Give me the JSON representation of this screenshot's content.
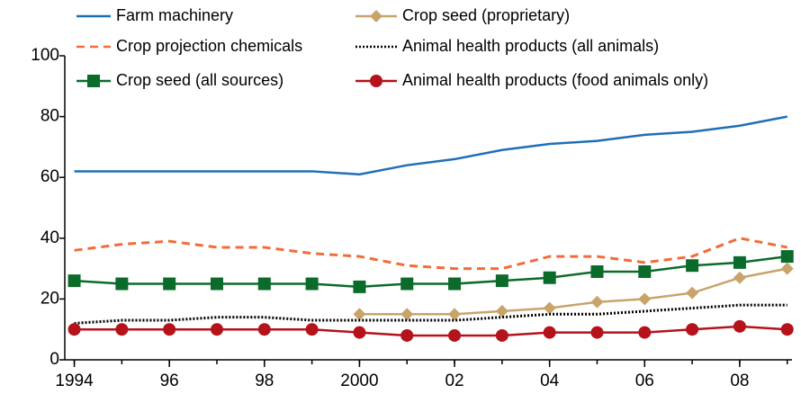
{
  "chart_data": {
    "type": "line",
    "x": [
      1994,
      1995,
      1996,
      1997,
      1998,
      1999,
      2000,
      2001,
      2002,
      2003,
      2004,
      2005,
      2006,
      2007,
      2008,
      2009
    ],
    "xlim": [
      1993.8,
      2009.1
    ],
    "xticks": [
      1994,
      {
        "value": 1996,
        "label": "96"
      },
      {
        "value": 1998,
        "label": "98"
      },
      2000,
      {
        "value": 2002,
        "label": "02"
      },
      {
        "value": 2004,
        "label": "04"
      },
      {
        "value": 2006,
        "label": "06"
      },
      {
        "value": 2008,
        "label": "08"
      }
    ],
    "ylim": [
      0,
      100
    ],
    "yticks": [
      0,
      20,
      40,
      60,
      80,
      100
    ],
    "grid": false,
    "series": [
      {
        "name": "Farm machinery",
        "color": "#1f6fb5",
        "style": "solid",
        "values": [
          62,
          62,
          62,
          62,
          62,
          62,
          61,
          64,
          66,
          69,
          71,
          72,
          74,
          75,
          77,
          80
        ]
      },
      {
        "name": "Crop seed (proprietary)",
        "color": "#c8a46a",
        "style": "solid",
        "marker": "diamond",
        "values": [
          null,
          null,
          null,
          null,
          null,
          null,
          15,
          15,
          15,
          16,
          17,
          19,
          20,
          22,
          27,
          30
        ]
      },
      {
        "name": "Crop projection chemicals",
        "color": "#f26c3a",
        "style": "dashed",
        "values": [
          36,
          38,
          39,
          37,
          37,
          35,
          34,
          31,
          30,
          30,
          34,
          34,
          32,
          34,
          40,
          37
        ]
      },
      {
        "name": "Animal health products (all animals)",
        "color": "#000000",
        "style": "dotted",
        "values": [
          12,
          13,
          13,
          14,
          14,
          13,
          13,
          13,
          13,
          14,
          15,
          15,
          16,
          17,
          18,
          18
        ]
      },
      {
        "name": "Crop seed (all sources)",
        "color": "#0b6b2a",
        "style": "solid",
        "marker": "square",
        "values": [
          26,
          25,
          25,
          25,
          25,
          25,
          24,
          25,
          25,
          26,
          27,
          29,
          29,
          31,
          32,
          34
        ]
      },
      {
        "name": "Animal health products (food animals only)",
        "color": "#b5121b",
        "style": "solid",
        "marker": "circle",
        "values": [
          10,
          10,
          10,
          10,
          10,
          10,
          9,
          8,
          8,
          8,
          9,
          9,
          9,
          10,
          11,
          10
        ]
      }
    ]
  }
}
